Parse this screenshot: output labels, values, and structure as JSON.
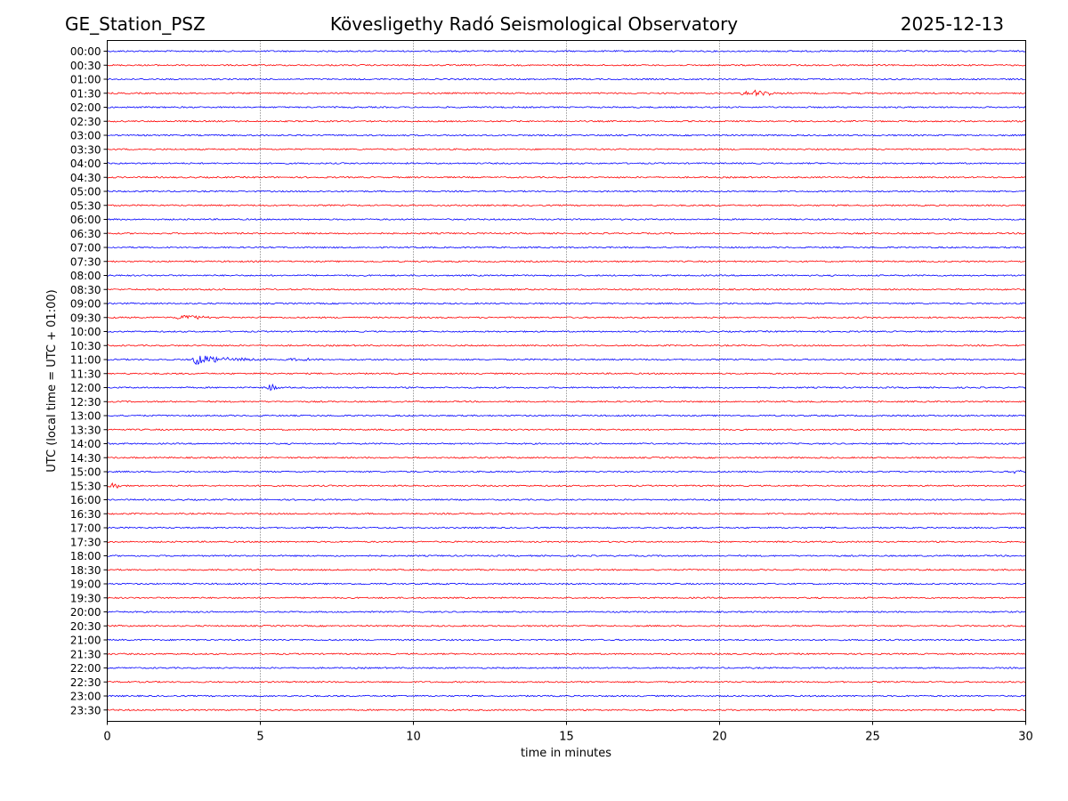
{
  "header": {
    "station": "GE_Station_PSZ",
    "observatory": "Kövesligethy Radó Seismological Observatory",
    "date": "2025-12-13"
  },
  "chart_data": {
    "type": "line",
    "title": "Kövesligethy Radó Seismological Observatory",
    "xlabel": "time in minutes",
    "ylabel": "UTC (local time = UTC + 01:00)",
    "xlim": [
      0,
      30
    ],
    "xticks": [
      0,
      5,
      10,
      15,
      20,
      25,
      30
    ],
    "vertical_gridlines": [
      5,
      10,
      15,
      20,
      25
    ],
    "row_labels": [
      "00:00",
      "00:30",
      "01:00",
      "01:30",
      "02:00",
      "02:30",
      "03:00",
      "03:30",
      "04:00",
      "04:30",
      "05:00",
      "05:30",
      "06:00",
      "06:30",
      "07:00",
      "07:30",
      "08:00",
      "08:30",
      "09:00",
      "09:30",
      "10:00",
      "10:30",
      "11:00",
      "11:30",
      "12:00",
      "12:30",
      "13:00",
      "13:30",
      "14:00",
      "14:30",
      "15:00",
      "15:30",
      "16:00",
      "16:30",
      "17:00",
      "17:30",
      "18:00",
      "18:30",
      "19:00",
      "19:30",
      "20:00",
      "20:30",
      "21:00",
      "21:30",
      "22:00",
      "22:30",
      "23:00",
      "23:30"
    ],
    "colors": {
      "even_rows": "#0000ff",
      "odd_rows": "#ff0000"
    },
    "events": [
      {
        "row": "01:30",
        "start_min": 20.6,
        "end_min": 22.3,
        "amplitude": "small"
      },
      {
        "row": "09:30",
        "start_min": 2.2,
        "end_min": 3.6,
        "amplitude": "small"
      },
      {
        "row": "11:00",
        "start_min": 2.8,
        "end_min": 7.0,
        "amplitude": "large"
      },
      {
        "row": "12:00",
        "start_min": 5.2,
        "end_min": 5.7,
        "amplitude": "medium"
      },
      {
        "row": "15:00",
        "start_min": 29.6,
        "end_min": 30.0,
        "amplitude": "small"
      },
      {
        "row": "15:30",
        "start_min": 0.0,
        "end_min": 0.7,
        "amplitude": "small"
      }
    ]
  }
}
